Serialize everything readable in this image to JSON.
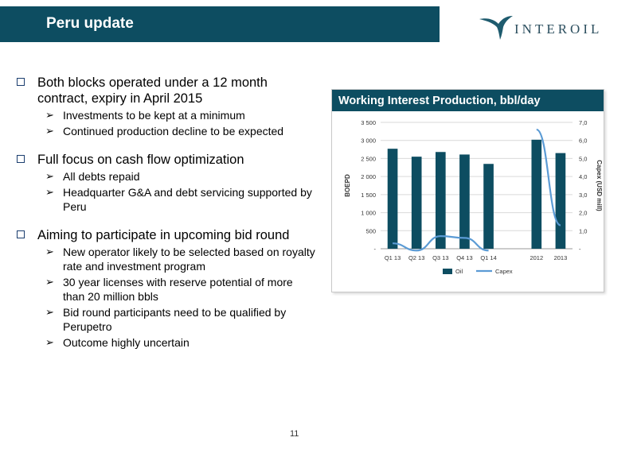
{
  "header": {
    "title": "Peru update"
  },
  "logo": {
    "text": "INTEROIL"
  },
  "bullets": [
    {
      "text": "Both blocks operated under a 12 month contract, expiry in April 2015",
      "sub": [
        "Investments to be kept at a minimum",
        "Continued production decline to be expected"
      ]
    },
    {
      "text": "Full focus on cash flow optimization",
      "sub": [
        "All debts repaid",
        "Headquarter G&A and debt servicing supported by Peru"
      ]
    },
    {
      "text": "Aiming to participate in upcoming bid round",
      "sub": [
        "New operator likely to be selected based on royalty rate and investment program",
        "30 year licenses with reserve potential of more than 20 million bbls",
        "Bid round participants need to be qualified by Perupetro",
        "Outcome highly uncertain"
      ]
    }
  ],
  "chart_data": {
    "type": "bar",
    "title": "Working Interest Production, bbl/day",
    "categories": [
      "Q1 13",
      "Q2 13",
      "Q3 13",
      "Q4 13",
      "Q1 14",
      "",
      "2012",
      "2013"
    ],
    "series": [
      {
        "name": "Oil",
        "type": "bar",
        "axis": "left",
        "color": "#0d4d61",
        "values": [
          2770,
          2550,
          2680,
          2610,
          2350,
          null,
          3020,
          2650
        ]
      },
      {
        "name": "Capex",
        "type": "line",
        "axis": "right",
        "color": "#5b9bd5",
        "values": [
          0.3,
          -0.1,
          0.7,
          0.6,
          -0.1,
          null,
          6.6,
          1.3
        ]
      }
    ],
    "ylabel": "BOEPD",
    "y2label": "Capex (USD mill)",
    "ylim": [
      0,
      3500
    ],
    "y2lim": [
      0,
      7
    ],
    "yticks": [
      "-",
      "500",
      "1 000",
      "1 500",
      "2 000",
      "2 500",
      "3 000",
      "3 500"
    ],
    "y2ticks": [
      "-",
      "1,0",
      "2,0",
      "3,0",
      "4,0",
      "5,0",
      "6,0",
      "7,0"
    ],
    "legend": "bottom",
    "grid": true
  },
  "footer": {
    "page": "11"
  },
  "colors": {
    "brand": "#0d4d61",
    "capex_line": "#5b9bd5"
  }
}
